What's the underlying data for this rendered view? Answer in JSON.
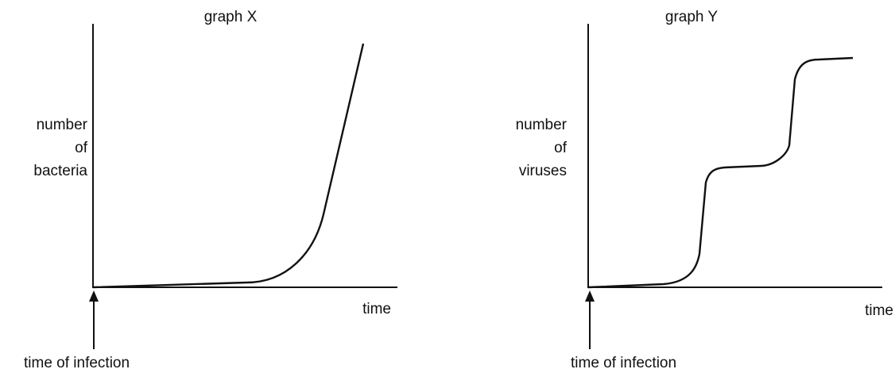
{
  "graphs": [
    {
      "title": "graph X",
      "y_label": [
        "number",
        "of",
        "bacteria"
      ],
      "x_label": "time",
      "annotation": "time of infection"
    },
    {
      "title": "graph Y",
      "y_label": [
        "number",
        "of",
        "viruses"
      ],
      "x_label": "time",
      "annotation": "time of infection"
    }
  ]
}
